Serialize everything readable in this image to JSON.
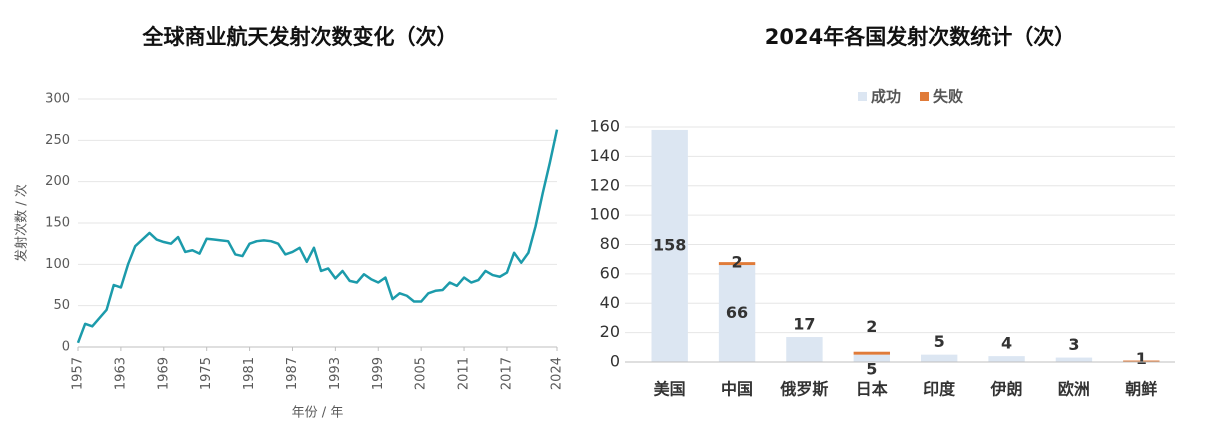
{
  "chart_data": [
    {
      "type": "line",
      "title": "全球商业航天发射次数变化（次）",
      "xlabel": "年份 / 年",
      "ylabel": "发射次数 / 次",
      "x": [
        1957,
        1958,
        1959,
        1960,
        1961,
        1962,
        1963,
        1964,
        1965,
        1966,
        1967,
        1968,
        1969,
        1970,
        1971,
        1972,
        1973,
        1974,
        1975,
        1976,
        1977,
        1978,
        1979,
        1980,
        1981,
        1982,
        1983,
        1984,
        1985,
        1986,
        1987,
        1988,
        1989,
        1990,
        1991,
        1992,
        1993,
        1994,
        1995,
        1996,
        1997,
        1998,
        1999,
        2000,
        2001,
        2002,
        2003,
        2004,
        2005,
        2006,
        2007,
        2008,
        2009,
        2010,
        2011,
        2012,
        2013,
        2014,
        2015,
        2016,
        2017,
        2018,
        2019,
        2020,
        2021,
        2022,
        2023,
        2024
      ],
      "series": [
        {
          "color": "#1c9bab",
          "values": [
            5,
            28,
            25,
            35,
            45,
            75,
            72,
            100,
            122,
            130,
            138,
            130,
            127,
            125,
            133,
            115,
            117,
            113,
            131,
            130,
            129,
            128,
            112,
            110,
            125,
            128,
            129,
            128,
            125,
            112,
            115,
            120,
            103,
            120,
            92,
            95,
            83,
            92,
            80,
            78,
            88,
            82,
            78,
            84,
            58,
            65,
            62,
            55,
            55,
            65,
            68,
            69,
            78,
            74,
            84,
            78,
            81,
            92,
            87,
            85,
            90,
            114,
            102,
            114,
            146,
            186,
            223,
            263
          ]
        }
      ],
      "xlim": [
        1957,
        2024
      ],
      "xticks": [
        1957,
        1963,
        1969,
        1975,
        1981,
        1987,
        1993,
        1999,
        2005,
        2011,
        2017,
        2024
      ],
      "ylim": [
        0,
        300
      ],
      "yticks": [
        0,
        50,
        100,
        150,
        200,
        250,
        300
      ],
      "grid": true
    },
    {
      "type": "stacked-bar",
      "title": "2024年各国发射次数统计（次）",
      "categories": [
        "美国",
        "中国",
        "俄罗斯",
        "日本",
        "印度",
        "伊朗",
        "欧洲",
        "朝鲜"
      ],
      "series": [
        {
          "name": "成功",
          "color": "#dce6f2",
          "values": [
            158,
            66,
            17,
            5,
            5,
            4,
            3,
            null
          ]
        },
        {
          "name": "失败",
          "color": "#e07b39",
          "values": [
            null,
            2,
            null,
            2,
            null,
            null,
            null,
            1
          ]
        }
      ],
      "ylim": [
        0,
        160
      ],
      "yticks": [
        0,
        20,
        40,
        60,
        80,
        100,
        120,
        140,
        160
      ],
      "grid": true,
      "legend": "top"
    }
  ]
}
